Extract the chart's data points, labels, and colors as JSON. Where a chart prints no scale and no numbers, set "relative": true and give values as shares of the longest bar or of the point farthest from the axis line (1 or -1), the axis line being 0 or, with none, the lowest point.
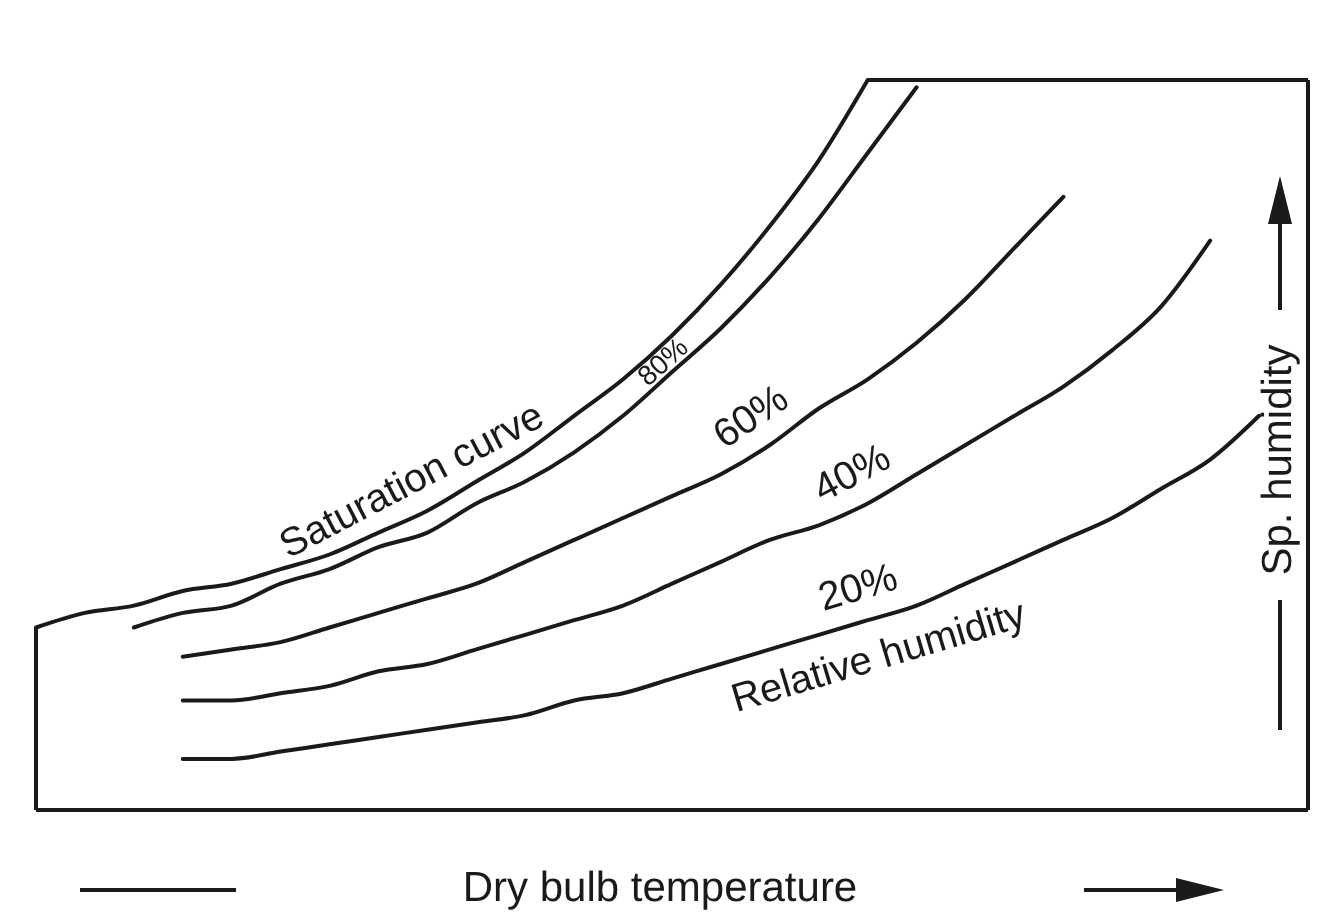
{
  "chart_data": {
    "type": "line",
    "relative": true,
    "xlabel": "Dry bulb temperature",
    "ylabel": "Sp. humidity",
    "line_style": "solid",
    "categories": [
      null,
      null,
      null,
      null,
      null,
      null,
      null,
      null,
      null,
      null,
      null,
      null,
      null,
      null,
      null,
      null,
      null,
      null,
      null,
      null,
      null,
      null,
      null,
      null,
      null,
      null,
      null
    ],
    "series": [
      {
        "name": "Saturation curve",
        "color": "#1a1a1a",
        "values": [
          0.25,
          0.27,
          0.28,
          0.3,
          0.31,
          0.33,
          0.35,
          0.38,
          0.41,
          0.45,
          0.49,
          0.54,
          0.59,
          0.65,
          0.72,
          0.8,
          0.89,
          1,
          null,
          null,
          null,
          null,
          null,
          null,
          null,
          null,
          null
        ]
      },
      {
        "name": "80%",
        "color": "#1a1a1a",
        "values": [
          null,
          null,
          0.25,
          0.27,
          0.28,
          0.31,
          0.33,
          0.36,
          0.38,
          0.42,
          0.45,
          0.49,
          0.54,
          0.6,
          0.66,
          0.73,
          0.81,
          0.9,
          0.99,
          null,
          null,
          null,
          null,
          null,
          null,
          null,
          null
        ]
      },
      {
        "name": "60%",
        "color": "#1a1a1a",
        "values": [
          null,
          null,
          null,
          0.21,
          0.22,
          0.23,
          0.25,
          0.27,
          0.29,
          0.31,
          0.34,
          0.37,
          0.4,
          0.43,
          0.46,
          0.5,
          0.55,
          0.59,
          0.64,
          0.7,
          0.77,
          0.84,
          null,
          null,
          null,
          null,
          null
        ]
      },
      {
        "name": "40%",
        "color": "#1a1a1a",
        "values": [
          null,
          null,
          null,
          0.15,
          0.15,
          0.16,
          0.17,
          0.19,
          0.2,
          0.22,
          0.24,
          0.26,
          0.28,
          0.31,
          0.34,
          0.37,
          0.39,
          0.42,
          0.46,
          0.5,
          0.54,
          0.58,
          0.63,
          0.69,
          0.78,
          null,
          null
        ]
      },
      {
        "name": "20%",
        "color": "#1a1a1a",
        "values": [
          null,
          null,
          null,
          0.07,
          0.07,
          0.08,
          0.09,
          0.1,
          0.11,
          0.12,
          0.13,
          0.15,
          0.16,
          0.18,
          0.2,
          0.22,
          0.24,
          0.26,
          0.28,
          0.31,
          0.34,
          0.37,
          0.4,
          0.44,
          0.48,
          0.54,
          null
        ]
      }
    ],
    "annotations": [
      "Relative humidity"
    ]
  }
}
